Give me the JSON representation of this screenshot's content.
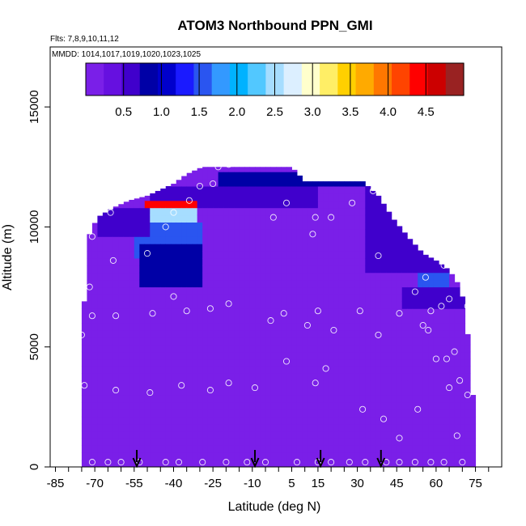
{
  "chart_data": {
    "type": "heatmap",
    "title": "ATOM3 Northbound PPN_GMI",
    "subtitle_flights": "Flts: 7,8,9,10,11,12",
    "subtitle_dates": "MMDD: 1014,1017,1019,1020,1023,1025",
    "xlabel": "Latitude (deg N)",
    "ylabel": "Altitude (m)",
    "xlim": [
      -87,
      85
    ],
    "ylim": [
      0,
      17500
    ],
    "x_ticks": [
      -85,
      -70,
      -55,
      -40,
      -25,
      -10,
      5,
      15,
      30,
      45,
      60,
      75
    ],
    "x_minor_step": 5,
    "y_ticks": [
      0,
      5000,
      10000,
      15000
    ],
    "colorbar": {
      "range": [
        0,
        5
      ],
      "ticks": [
        "0.5",
        "1.0",
        "1.5",
        "2.0",
        "2.5",
        "3.0",
        "3.5",
        "4.0",
        "4.5"
      ],
      "tick_values": [
        0.5,
        1.0,
        1.5,
        2.0,
        2.5,
        3.0,
        3.5,
        4.0,
        4.5
      ],
      "colors": [
        "#7a1fe8",
        "#6610e0",
        "#4000cc",
        "#0000a6",
        "#0000cc",
        "#1a1aff",
        "#2a55f0",
        "#3399ff",
        "#00b2ff",
        "#52c8ff",
        "#a6ddff",
        "#dcefff",
        "#ffffcc",
        "#ffee66",
        "#ffd000",
        "#ffaa00",
        "#ff7700",
        "#ff4400",
        "#ff0000",
        "#cc0000",
        "#992222"
      ]
    },
    "background_value": 0.15,
    "arrow_latitudes": [
      -54,
      -9,
      16,
      39
    ],
    "envelope_profile": [
      [
        -75,
        5500
      ],
      [
        -72,
        9700
      ],
      [
        -69,
        10400
      ],
      [
        -63,
        10800
      ],
      [
        -57,
        11100
      ],
      [
        -50,
        11300
      ],
      [
        -46,
        11500
      ],
      [
        -40,
        11800
      ],
      [
        -35,
        12200
      ],
      [
        -29,
        12500
      ],
      [
        -20,
        12500
      ],
      [
        -10,
        12500
      ],
      [
        0,
        12500
      ],
      [
        5,
        12500
      ],
      [
        10,
        11900
      ],
      [
        20,
        11900
      ],
      [
        32,
        11900
      ],
      [
        38,
        11300
      ],
      [
        44,
        10300
      ],
      [
        50,
        9500
      ],
      [
        55,
        8900
      ],
      [
        60,
        8600
      ],
      [
        65,
        8200
      ],
      [
        68,
        7700
      ],
      [
        71,
        6800
      ],
      [
        74,
        3000
      ]
    ],
    "features": [
      {
        "name": "upper-blue-band",
        "lat": [
          -22,
          40
        ],
        "alt": [
          11600,
          12400
        ],
        "value": 0.9
      },
      {
        "name": "tropopause-dark",
        "lat": [
          -48,
          14
        ],
        "alt": [
          10800,
          11600
        ],
        "value": 0.6
      },
      {
        "name": "southern-high-core",
        "lat": [
          -50,
          -32
        ],
        "alt": [
          10700,
          11200
        ],
        "value": 4.5
      },
      {
        "name": "southern-white-band",
        "lat": [
          -63,
          -32
        ],
        "alt": [
          10000,
          10800
        ],
        "value": 2.4
      },
      {
        "name": "southern-bowl-cyan",
        "lat": [
          -55,
          -30
        ],
        "alt": [
          8800,
          10300
        ],
        "value": 1.5
      },
      {
        "name": "southern-bowl-blue",
        "lat": [
          -52,
          -30
        ],
        "alt": [
          7600,
          9300
        ],
        "value": 0.8
      },
      {
        "name": "southern-edge-blue",
        "lat": [
          -68,
          -50
        ],
        "alt": [
          9600,
          10800
        ],
        "value": 0.7
      },
      {
        "name": "northern-edge-blue",
        "lat": [
          33,
          72
        ],
        "alt": [
          8000,
          11900
        ],
        "value": 0.7
      },
      {
        "name": "northern-cyan-spot",
        "lat": [
          53,
          64
        ],
        "alt": [
          7500,
          8200
        ],
        "value": 1.6
      },
      {
        "name": "northern-dark-spot",
        "lat": [
          48,
          70
        ],
        "alt": [
          6500,
          7600
        ],
        "value": 0.6
      }
    ],
    "sample_points": [
      [
        -71,
        200
      ],
      [
        -65,
        200
      ],
      [
        -60,
        200
      ],
      [
        -53,
        200
      ],
      [
        -43,
        200
      ],
      [
        -38,
        200
      ],
      [
        -29,
        200
      ],
      [
        -20,
        200
      ],
      [
        -12,
        200
      ],
      [
        -5,
        200
      ],
      [
        7,
        200
      ],
      [
        15,
        200
      ],
      [
        20,
        200
      ],
      [
        27,
        200
      ],
      [
        33,
        200
      ],
      [
        41,
        200
      ],
      [
        46,
        200
      ],
      [
        52,
        200
      ],
      [
        58,
        200
      ],
      [
        63,
        200
      ],
      [
        70,
        200
      ],
      [
        -74,
        3400
      ],
      [
        -62,
        3200
      ],
      [
        -49,
        3100
      ],
      [
        -37,
        3400
      ],
      [
        -26,
        3200
      ],
      [
        -19,
        3500
      ],
      [
        -9,
        3300
      ],
      [
        3,
        4400
      ],
      [
        14,
        3500
      ],
      [
        18,
        4100
      ],
      [
        32,
        2400
      ],
      [
        40,
        2000
      ],
      [
        46,
        1200
      ],
      [
        53,
        2400
      ],
      [
        60,
        4500
      ],
      [
        64,
        4500
      ],
      [
        65,
        3300
      ],
      [
        67,
        4800
      ],
      [
        68,
        1300
      ],
      [
        69,
        3600
      ],
      [
        72,
        3000
      ],
      [
        -75,
        5500
      ],
      [
        -71,
        6300
      ],
      [
        -62,
        6300
      ],
      [
        -48,
        6400
      ],
      [
        -35,
        6500
      ],
      [
        -26,
        6600
      ],
      [
        -19,
        6800
      ],
      [
        -3,
        6100
      ],
      [
        2,
        6400
      ],
      [
        11,
        5900
      ],
      [
        15,
        6500
      ],
      [
        21,
        5700
      ],
      [
        31,
        6500
      ],
      [
        38,
        5500
      ],
      [
        46,
        6400
      ],
      [
        55,
        5900
      ],
      [
        57,
        5700
      ],
      [
        58,
        6500
      ],
      [
        62,
        6700
      ],
      [
        65,
        7000
      ],
      [
        72,
        6700
      ],
      [
        -72,
        7500
      ],
      [
        -63,
        8600
      ],
      [
        -50,
        8900
      ],
      [
        -40,
        7100
      ],
      [
        -43,
        10000
      ],
      [
        -40,
        10600
      ],
      [
        -34,
        11100
      ],
      [
        -30,
        11700
      ],
      [
        -25,
        11800
      ],
      [
        -2,
        10400
      ],
      [
        3,
        11000
      ],
      [
        13,
        9700
      ],
      [
        14,
        10400
      ],
      [
        20,
        10400
      ],
      [
        28,
        11000
      ],
      [
        36,
        11500
      ],
      [
        38,
        8800
      ],
      [
        52,
        7300
      ],
      [
        56,
        7900
      ],
      [
        63,
        8400
      ],
      [
        -64,
        10600
      ],
      [
        -71,
        9600
      ],
      [
        -23,
        12500
      ],
      [
        -19,
        12600
      ]
    ]
  }
}
